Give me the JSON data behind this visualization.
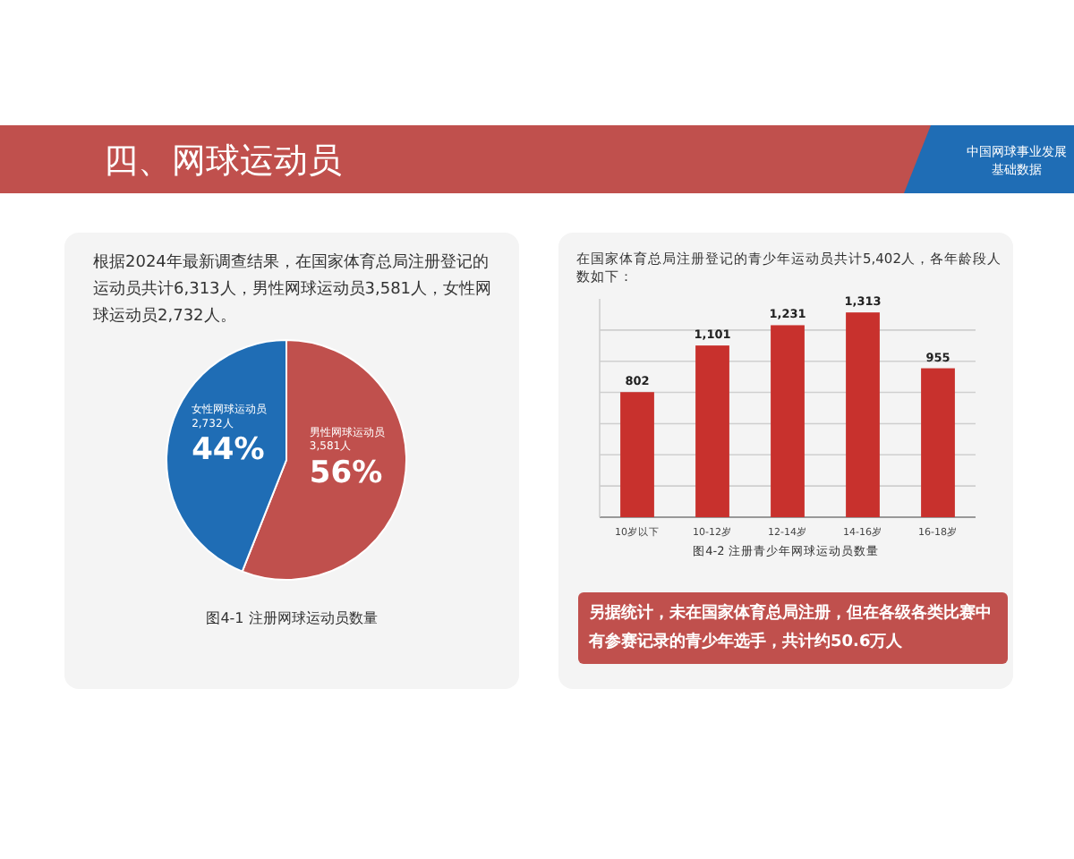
{
  "chart_data": [
    {
      "type": "other",
      "title": "四、网球运动员",
      "annotations": [
        "中国网球事业发展基础数据"
      ]
    },
    {
      "type": "pie",
      "title": "图4-1 注册网球运动员数量",
      "subtitle": "根据2024年最新调查结果，在国家体育总局注册登记的运动员共计6,313人，男性网球运动员3,581人，女性网球运动员2,732人。",
      "categories": [
        "男性网球运动员\n3,581人",
        "女性网球运动员\n2,732人"
      ],
      "values": [
        56,
        44
      ],
      "colors": [
        "#c0504d",
        "#1f6db5"
      ],
      "value_labels": [
        "56%",
        "44%"
      ]
    },
    {
      "type": "bar",
      "title": "图4-2 注册青少年网球运动员数量",
      "subtitle": "在国家体育总局注册登记的青少年运动员共计5,402人，各年龄段人数如下：",
      "categories": [
        "10岁以下",
        "10-12岁",
        "12-14岁",
        "14-16岁",
        "16-18岁"
      ],
      "values": [
        802,
        1101,
        1231,
        1313,
        955
      ],
      "color": "#c8312d",
      "value_labels": [
        "802",
        "1,101",
        "1,231",
        "1,313",
        "955"
      ],
      "ylim": [
        0,
        1400
      ],
      "yticks": [
        {
          "value": 200,
          "label": null
        },
        {
          "value": 400,
          "label": null
        },
        {
          "value": 600,
          "label": null
        },
        {
          "value": 800,
          "label": null
        },
        {
          "value": 1000,
          "label": null
        },
        {
          "value": 1200,
          "label": null
        }
      ],
      "grid": "y",
      "tick_labels": "x",
      "annotations": [
        "另据统计，未在国家体育总局注册，但在各级各类比赛中有参赛记录的青少年选手，共计约50.6万人"
      ]
    }
  ]
}
